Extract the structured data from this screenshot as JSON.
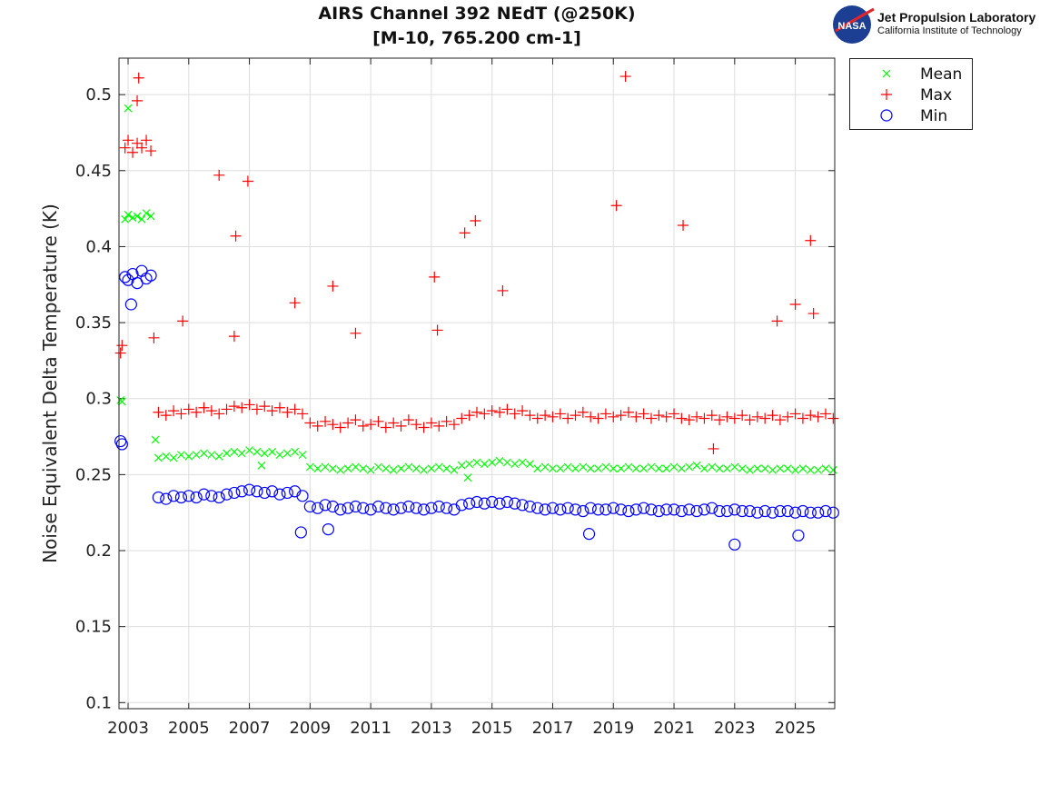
{
  "chart_data": {
    "type": "scatter",
    "title": [
      "AIRS Channel 392 NEdT (@250K)",
      "[M-10, 765.200 cm-1]"
    ],
    "xlabel": "",
    "ylabel": "Noise Equivalent Delta Temperature (K)",
    "xlim": [
      2002.7,
      2026.3
    ],
    "ylim": [
      0.096,
      0.524
    ],
    "xticks": [
      2003,
      2005,
      2007,
      2009,
      2011,
      2013,
      2015,
      2017,
      2019,
      2021,
      2023,
      2025
    ],
    "yticks": [
      0.1,
      0.15,
      0.2,
      0.25,
      0.3,
      0.35,
      0.4,
      0.45,
      0.5
    ],
    "ytick_labels": [
      "0.1",
      "0.15",
      "0.2",
      "0.25",
      "0.3",
      "0.35",
      "0.4",
      "0.45",
      "0.5"
    ],
    "grid": true,
    "legend_position": "outside-top-right",
    "x": [
      2002.75,
      2002.8,
      2002.9,
      2003.0,
      2003.15,
      2003.3,
      2003.45,
      2003.6,
      2003.75,
      2004,
      2004.25,
      2004.5,
      2004.75,
      2005,
      2005.25,
      2005.5,
      2005.75,
      2006,
      2006.25,
      2006.5,
      2006.75,
      2007,
      2007.25,
      2007.5,
      2007.75,
      2008,
      2008.25,
      2008.5,
      2008.75,
      2009,
      2009.25,
      2009.5,
      2009.75,
      2010,
      2010.25,
      2010.5,
      2010.75,
      2011,
      2011.25,
      2011.5,
      2011.75,
      2012,
      2012.25,
      2012.5,
      2012.75,
      2013,
      2013.25,
      2013.5,
      2013.75,
      2014,
      2014.25,
      2014.5,
      2014.75,
      2015,
      2015.25,
      2015.5,
      2015.75,
      2016,
      2016.25,
      2016.5,
      2016.75,
      2017,
      2017.25,
      2017.5,
      2017.75,
      2018,
      2018.25,
      2018.5,
      2018.75,
      2019,
      2019.25,
      2019.5,
      2019.75,
      2020,
      2020.25,
      2020.5,
      2020.75,
      2021,
      2021.25,
      2021.5,
      2021.75,
      2022,
      2022.25,
      2022.5,
      2022.75,
      2023,
      2023.25,
      2023.5,
      2023.75,
      2024,
      2024.25,
      2024.5,
      2024.75,
      2025,
      2025.25,
      2025.5,
      2025.75,
      2026,
      2026.25
    ],
    "series": [
      {
        "name": "Mean",
        "marker": "x",
        "color": "#00ff00",
        "values": [
          0.299,
          0.298,
          0.418,
          0.421,
          0.419,
          0.42,
          0.418,
          0.422,
          0.42,
          0.261,
          0.262,
          0.261,
          0.263,
          0.262,
          0.263,
          0.264,
          0.263,
          0.262,
          0.264,
          0.265,
          0.264,
          0.266,
          0.265,
          0.264,
          0.265,
          0.263,
          0.264,
          0.265,
          0.263,
          0.255,
          0.254,
          0.255,
          0.254,
          0.253,
          0.254,
          0.255,
          0.254,
          0.253,
          0.255,
          0.254,
          0.253,
          0.254,
          0.255,
          0.254,
          0.253,
          0.254,
          0.255,
          0.254,
          0.253,
          0.256,
          0.257,
          0.258,
          0.257,
          0.258,
          0.259,
          0.258,
          0.257,
          0.258,
          0.257,
          0.254,
          0.255,
          0.254,
          0.254,
          0.255,
          0.254,
          0.255,
          0.254,
          0.254,
          0.255,
          0.254,
          0.254,
          0.255,
          0.254,
          0.254,
          0.255,
          0.254,
          0.254,
          0.255,
          0.254,
          0.255,
          0.256,
          0.254,
          0.255,
          0.254,
          0.254,
          0.255,
          0.254,
          0.253,
          0.254,
          0.254,
          0.253,
          0.254,
          0.254,
          0.253,
          0.254,
          0.253,
          0.253,
          0.254,
          0.253
        ],
        "outliers": [
          [
            2003.0,
            0.491
          ],
          [
            2003.9,
            0.273
          ],
          [
            2014.2,
            0.248
          ],
          [
            2007.4,
            0.256
          ]
        ]
      },
      {
        "name": "Max",
        "marker": "+",
        "color": "#ff0000",
        "values": [
          0.33,
          0.335,
          0.465,
          0.47,
          0.462,
          0.468,
          0.465,
          0.47,
          0.463,
          0.291,
          0.289,
          0.292,
          0.29,
          0.293,
          0.291,
          0.294,
          0.292,
          0.29,
          0.293,
          0.295,
          0.294,
          0.296,
          0.293,
          0.295,
          0.292,
          0.294,
          0.291,
          0.293,
          0.29,
          0.284,
          0.282,
          0.285,
          0.283,
          0.281,
          0.284,
          0.286,
          0.282,
          0.283,
          0.285,
          0.281,
          0.284,
          0.282,
          0.286,
          0.283,
          0.281,
          0.284,
          0.282,
          0.285,
          0.283,
          0.287,
          0.289,
          0.291,
          0.29,
          0.292,
          0.291,
          0.293,
          0.29,
          0.292,
          0.289,
          0.287,
          0.289,
          0.288,
          0.29,
          0.287,
          0.289,
          0.291,
          0.288,
          0.287,
          0.29,
          0.288,
          0.289,
          0.291,
          0.288,
          0.29,
          0.287,
          0.289,
          0.288,
          0.29,
          0.287,
          0.286,
          0.288,
          0.287,
          0.289,
          0.286,
          0.288,
          0.287,
          0.289,
          0.286,
          0.288,
          0.287,
          0.289,
          0.286,
          0.288,
          0.29,
          0.287,
          0.289,
          0.288,
          0.29,
          0.287
        ],
        "outliers": [
          [
            2003.35,
            0.511
          ],
          [
            2003.3,
            0.496
          ],
          [
            2006.0,
            0.447
          ],
          [
            2006.95,
            0.443
          ],
          [
            2006.55,
            0.407
          ],
          [
            2008.5,
            0.363
          ],
          [
            2009.75,
            0.374
          ],
          [
            2013.1,
            0.38
          ],
          [
            2014.1,
            0.409
          ],
          [
            2014.45,
            0.417
          ],
          [
            2015.35,
            0.371
          ],
          [
            2019.1,
            0.427
          ],
          [
            2019.4,
            0.512
          ],
          [
            2021.3,
            0.414
          ],
          [
            2025.5,
            0.404
          ],
          [
            2025.0,
            0.362
          ],
          [
            2024.4,
            0.351
          ],
          [
            2004.8,
            0.351
          ],
          [
            2003.85,
            0.34
          ],
          [
            2006.5,
            0.341
          ],
          [
            2013.2,
            0.345
          ],
          [
            2010.5,
            0.343
          ],
          [
            2025.6,
            0.356
          ],
          [
            2022.3,
            0.267
          ]
        ]
      },
      {
        "name": "Min",
        "marker": "o",
        "color": "#0000ff",
        "values": [
          0.272,
          0.27,
          0.38,
          0.378,
          0.382,
          0.376,
          0.384,
          0.379,
          0.381,
          0.235,
          0.234,
          0.236,
          0.235,
          0.236,
          0.235,
          0.237,
          0.236,
          0.235,
          0.237,
          0.238,
          0.239,
          0.24,
          0.239,
          0.238,
          0.239,
          0.237,
          0.238,
          0.239,
          0.236,
          0.229,
          0.228,
          0.23,
          0.229,
          0.227,
          0.228,
          0.229,
          0.228,
          0.227,
          0.229,
          0.228,
          0.227,
          0.228,
          0.229,
          0.228,
          0.227,
          0.228,
          0.229,
          0.228,
          0.227,
          0.23,
          0.231,
          0.232,
          0.231,
          0.232,
          0.231,
          0.232,
          0.231,
          0.23,
          0.229,
          0.228,
          0.227,
          0.228,
          0.227,
          0.228,
          0.227,
          0.226,
          0.228,
          0.227,
          0.227,
          0.228,
          0.227,
          0.226,
          0.227,
          0.228,
          0.227,
          0.226,
          0.227,
          0.227,
          0.226,
          0.227,
          0.226,
          0.227,
          0.228,
          0.226,
          0.226,
          0.227,
          0.226,
          0.226,
          0.225,
          0.226,
          0.225,
          0.226,
          0.226,
          0.225,
          0.226,
          0.225,
          0.225,
          0.226,
          0.225
        ],
        "outliers": [
          [
            2008.7,
            0.212
          ],
          [
            2023.0,
            0.204
          ],
          [
            2025.1,
            0.21
          ],
          [
            2018.2,
            0.211
          ],
          [
            2003.1,
            0.362
          ],
          [
            2009.6,
            0.214
          ]
        ]
      }
    ]
  },
  "logo": {
    "org": "Jet Propulsion Laboratory",
    "sub": "California Institute of Technology",
    "badge": "NASA"
  }
}
